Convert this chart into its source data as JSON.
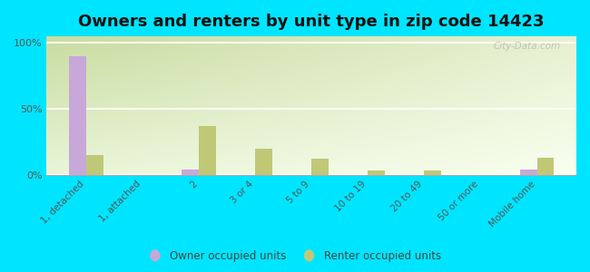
{
  "title": "Owners and renters by unit type in zip code 14423",
  "categories": [
    "1, detached",
    "1, attached",
    "2",
    "3 or 4",
    "5 to 9",
    "10 to 19",
    "20 to 49",
    "50 or more",
    "Mobile home"
  ],
  "owner_values": [
    90,
    0,
    4,
    0,
    0,
    0,
    0,
    0,
    4
  ],
  "renter_values": [
    15,
    0,
    37,
    20,
    12,
    3,
    3,
    0,
    13
  ],
  "owner_color": "#c8a8d8",
  "renter_color": "#c0c878",
  "bg_color_topleft": "#c8dca0",
  "bg_color_topright": "#e8f0d0",
  "bg_color_bottomleft": "#eaf5d8",
  "bg_color_bottomright": "#f8fff0",
  "outer_bg": "#00e5ff",
  "title_fontsize": 13,
  "yticks": [
    0,
    50,
    100
  ],
  "ylim": [
    0,
    105
  ],
  "watermark": "City-Data.com"
}
